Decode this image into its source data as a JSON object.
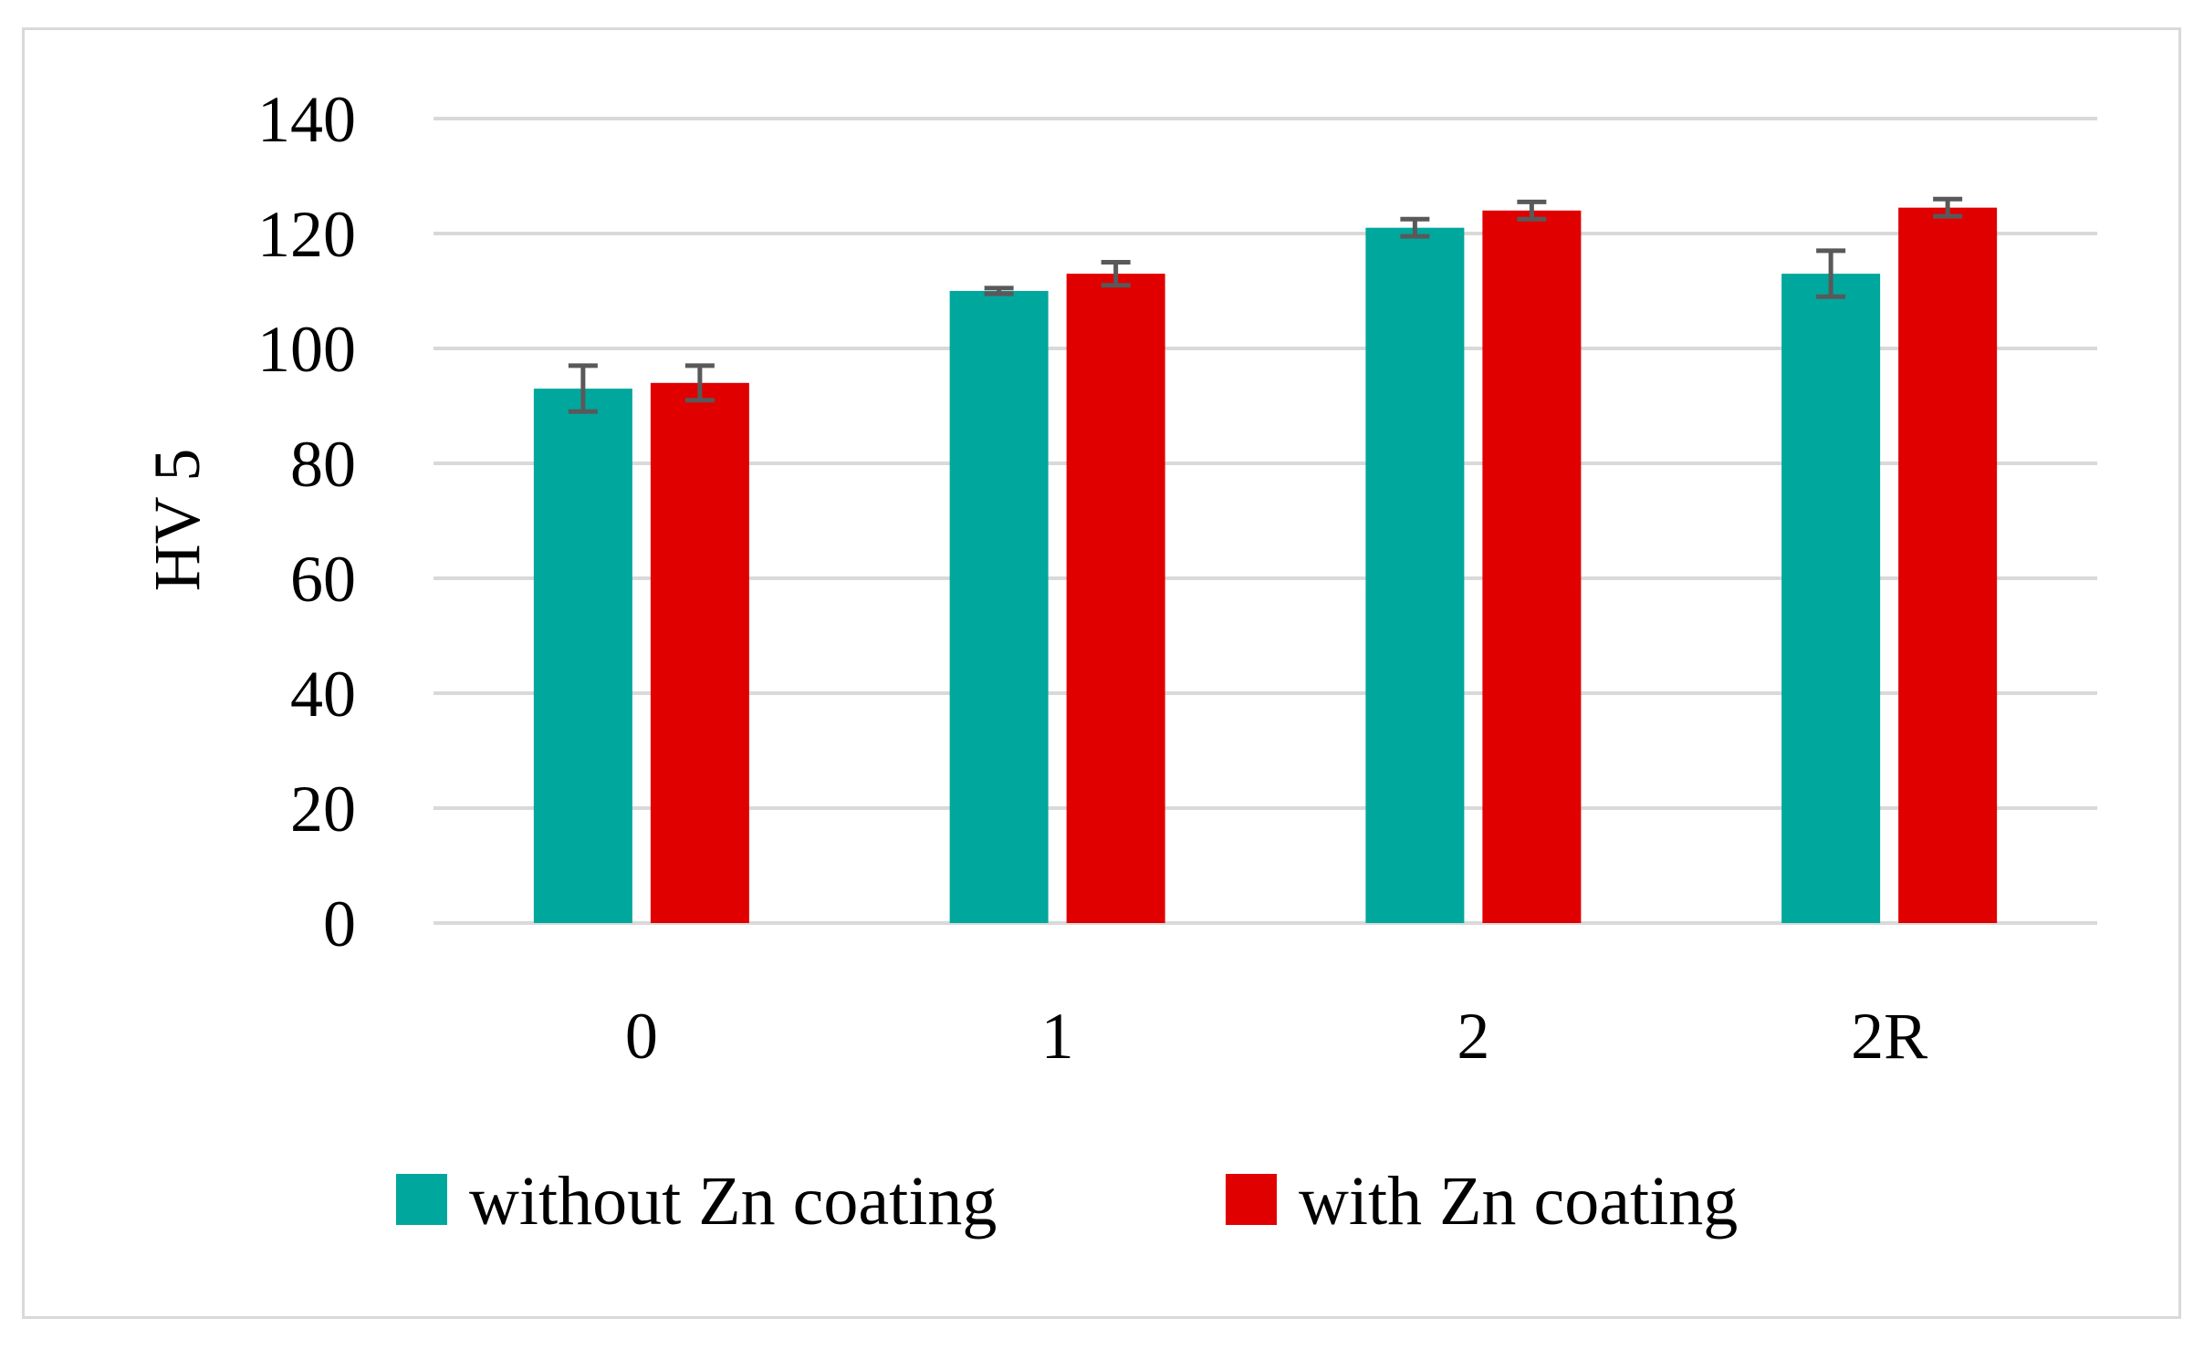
{
  "chart_data": {
    "type": "bar",
    "title": "",
    "xlabel": "",
    "ylabel": "HV 5",
    "categories": [
      "0",
      "1",
      "2",
      "2R"
    ],
    "ylim": [
      0,
      140
    ],
    "yticks": [
      0,
      20,
      40,
      60,
      80,
      100,
      120,
      140
    ],
    "grid": true,
    "legend_position": "bottom",
    "series": [
      {
        "name": "without Zn coating",
        "color": "#00a79d",
        "values": [
          93,
          110,
          121,
          113
        ],
        "errors": [
          4,
          0.5,
          1.5,
          4
        ]
      },
      {
        "name": "with Zn coating",
        "color": "#e00000",
        "values": [
          94,
          113,
          124,
          124.5
        ],
        "errors": [
          3,
          2,
          1.5,
          1.5
        ]
      }
    ]
  }
}
